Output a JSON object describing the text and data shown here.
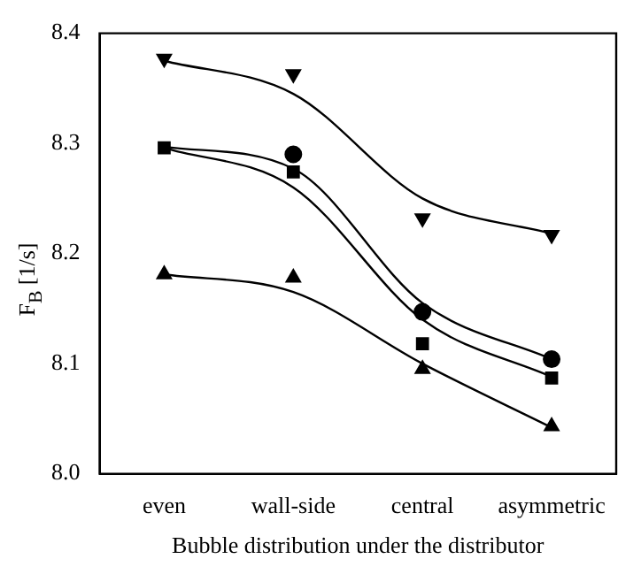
{
  "chart_data": {
    "type": "scatter",
    "xlabel": "Bubble distribution under the distributor",
    "ylabel": "F$_{B}$ [1/s]",
    "categories": [
      "even",
      "wall-side",
      "central",
      "asymmetric"
    ],
    "ylim": [
      8.0,
      8.4
    ],
    "yticks": [
      {
        "value": 8.0,
        "label": "8.0"
      },
      8.1,
      8.2,
      8.3,
      8.4
    ],
    "grid": false,
    "legend": false,
    "series": [
      {
        "type": "scatter",
        "marker": "triangle-down",
        "color": "#000000",
        "values": [
          8.377,
          8.363,
          8.232,
          8.217
        ]
      },
      {
        "type": "scatter",
        "marker": "circle",
        "color": "#000000",
        "values": [
          null,
          8.29,
          8.147,
          8.104
        ]
      },
      {
        "type": "scatter",
        "marker": "square",
        "color": "#000000",
        "values": [
          8.296,
          8.274,
          8.118,
          8.087
        ]
      },
      {
        "type": "scatter",
        "marker": "triangle",
        "color": "#000000",
        "values": [
          8.181,
          8.178,
          8.095,
          8.043
        ]
      },
      {
        "type": "line",
        "marker": "none",
        "color": "#000000",
        "values": [
          8.375,
          8.345,
          8.25,
          8.218
        ]
      },
      {
        "type": "line",
        "marker": "none",
        "color": "#000000",
        "values": [
          8.297,
          8.277,
          8.155,
          8.104
        ]
      },
      {
        "type": "line",
        "marker": "none",
        "color": "#000000",
        "values": [
          8.296,
          8.26,
          8.14,
          8.088
        ]
      },
      {
        "type": "line",
        "marker": "none",
        "color": "#000000",
        "values": [
          8.181,
          8.165,
          8.1,
          8.042
        ]
      }
    ]
  }
}
